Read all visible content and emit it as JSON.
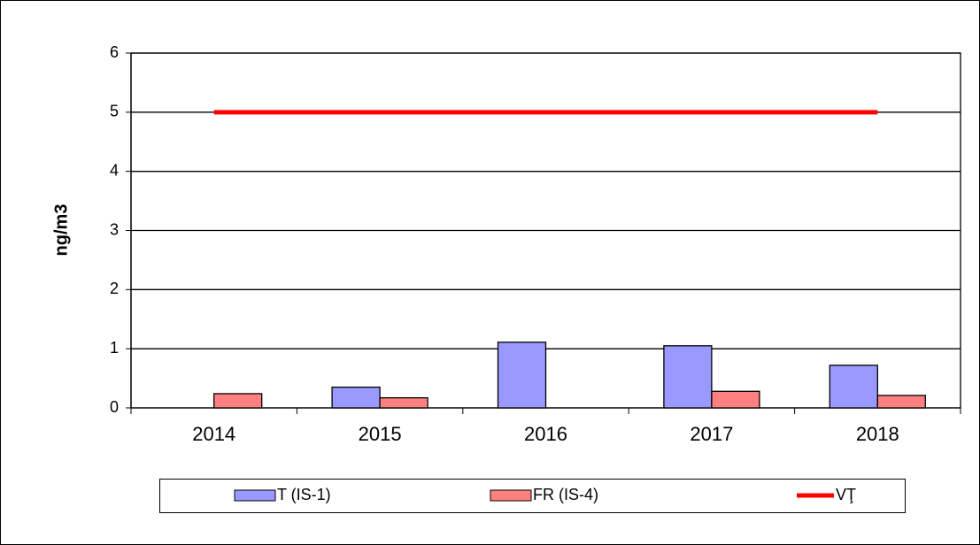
{
  "chart_data": {
    "type": "bar",
    "y_label": "ng/m3",
    "categories": [
      "2014",
      "2015",
      "2016",
      "2017",
      "2018"
    ],
    "series": [
      {
        "name": "T (IS-1)",
        "type": "bar",
        "color": "#9999ff",
        "values": [
          null,
          0.35,
          1.11,
          1.05,
          0.72
        ]
      },
      {
        "name": "FR (IS-4)",
        "type": "bar",
        "color": "#ff8080",
        "values": [
          0.24,
          0.17,
          null,
          0.28,
          0.21
        ]
      },
      {
        "name": "VŢ",
        "type": "line",
        "color": "#ff0000",
        "values": [
          5,
          5,
          5,
          5,
          5
        ]
      }
    ],
    "ylim": [
      0,
      6
    ],
    "yticks": [
      0,
      1,
      2,
      3,
      4,
      5,
      6
    ],
    "grid": true,
    "legend": "bottom"
  }
}
